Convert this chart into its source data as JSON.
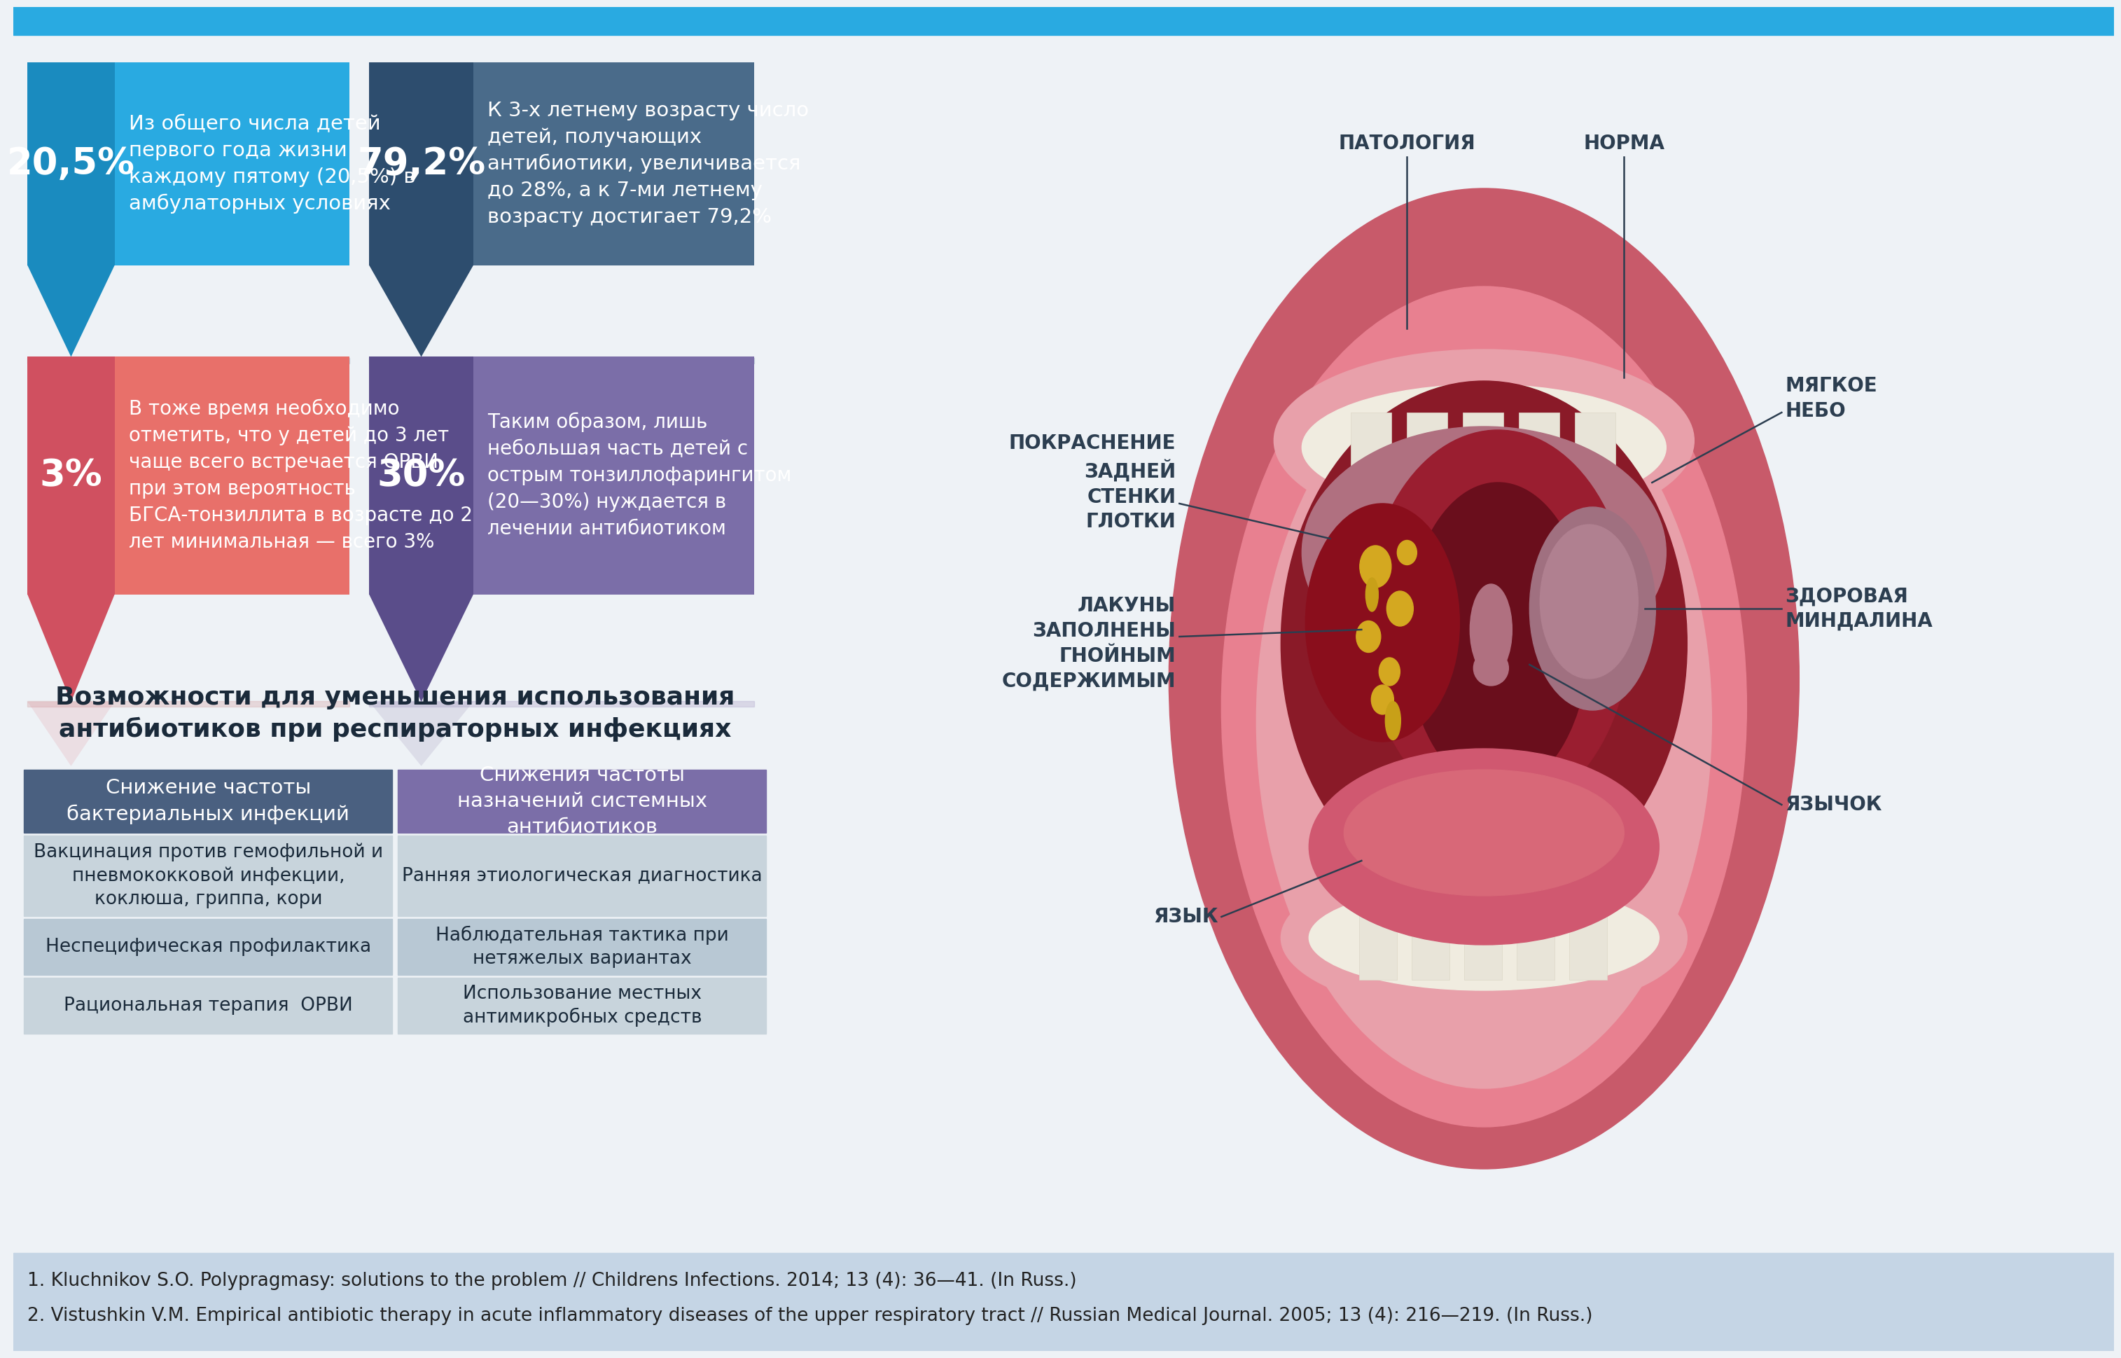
{
  "bg_color": "#eef2f6",
  "top_bar_color": "#29aae1",
  "ref_bar_color": "#c5d5e5",
  "box1_pct": "20,5%",
  "box1_pct_color": "#1a8bbf",
  "box1_body_color": "#29aae1",
  "box1_text": "Из общего числа детей\nпервого года жизни\nкаждому пятому (20,5%) в\nамбулаторных условиях",
  "box2_pct": "79,2%",
  "box2_pct_color": "#2d4d6e",
  "box2_body_color": "#4a6b8a",
  "box2_text": "К 3-х летнему возрасту число\nдетей, получающих\nантибиотики, увеличивается\nдо 28%, а к 7-ми летнему\nвозрасту достигает 79,2%",
  "box3_pct": "3%",
  "box3_pct_color": "#d05060",
  "box3_body_color": "#e8706a",
  "box3_text": "В тоже время необходимо\nотметить, что у детей до 3 лет\nчаще всего встречается ОРВИ,\nпри этом вероятность\nБГСА-тонзиллита в возрасте до 2\nлет минимальная — всего 3%",
  "box4_pct": "30%",
  "box4_pct_color": "#5a4d8a",
  "box4_body_color": "#7b6ea8",
  "box4_text": "Таким образом, лишь\nнебольшая часть детей с\nострым тонзиллофарингитом\n(20—30%) нуждается в\nлечении антибиотиком",
  "table_title_line1": "Возможности для уменьшения использования",
  "table_title_line2": "антибиотиков при респираторных инфекциях",
  "table_col1_header": "Снижение частоты\nбактериальных инфекций",
  "table_col2_header": "Снижения частоты\nназначений системных\nантибиотиков",
  "table_col1_header_color": "#4a6080",
  "table_col2_header_color": "#7b6ea8",
  "table_rows": [
    [
      "Вакцинация против гемофильной и\nпневмококковой инфекции,\nкоклюша, гриппа, кори",
      "Ранняя этиологическая диагностика"
    ],
    [
      "Неспецифическая профилактика",
      "Наблюдательная тактика при\nнетяжелых вариантах"
    ],
    [
      "Рациональная терапия  ОРВИ",
      "Использование местных\nантимикробных средств"
    ]
  ],
  "table_row_colors": [
    "#c8d4dc",
    "#b8c8d4"
  ],
  "ref1": "1. Kluchnikov S.O. Polypragmasy: solutions to the problem // Childrens Infections. 2014; 13 (4): 36—41. (In Russ.)",
  "ref2": "2. Vistushkin V.M. Empirical antibiotic therapy in acute inflammatory diseases of the upper respiratory tract // Russian Medical Journal. 2005; 13 (4): 216—219. (In Russ.)"
}
